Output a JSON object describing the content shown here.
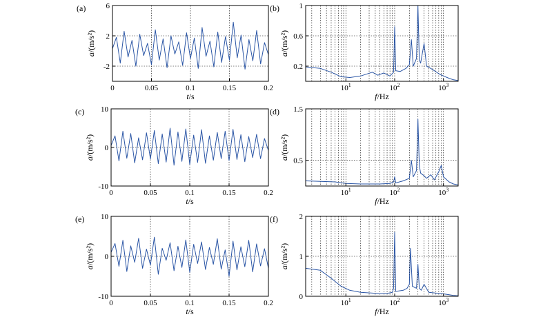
{
  "chart_data": [
    {
      "panel": "(a)",
      "type": "line",
      "ylabel": "a/(m/s²)",
      "xlabel": "t/s",
      "xlim": [
        0,
        0.2
      ],
      "ylim": [
        -4,
        6
      ],
      "x_ticks": [
        "0",
        "0.05",
        "0.1",
        "0.15",
        "0.2"
      ],
      "y_ticks": [
        "-2",
        "2",
        "6"
      ],
      "x_scale": "linear",
      "grid": true,
      "color": "#2a55a5",
      "series": [
        {
          "x": [
            0,
            0.005,
            0.01,
            0.015,
            0.02,
            0.025,
            0.03,
            0.035,
            0.04,
            0.045,
            0.05,
            0.055,
            0.06,
            0.065,
            0.07,
            0.075,
            0.08,
            0.085,
            0.09,
            0.095,
            0.1,
            0.105,
            0.11,
            0.115,
            0.12,
            0.125,
            0.13,
            0.135,
            0.14,
            0.145,
            0.15,
            0.155,
            0.16,
            0.165,
            0.17,
            0.175,
            0.18,
            0.185,
            0.19,
            0.195,
            0.2
          ],
          "y": [
            0.3,
            1.8,
            -1.6,
            2.6,
            -0.8,
            1.4,
            -2.0,
            2.2,
            -0.6,
            1.0,
            -1.8,
            2.8,
            -1.2,
            1.6,
            -2.2,
            2.0,
            -0.4,
            1.2,
            -1.9,
            2.4,
            -1.0,
            1.7,
            -2.3,
            3.1,
            -0.7,
            1.3,
            -2.1,
            2.5,
            -1.5,
            1.9,
            -1.2,
            3.8,
            -0.9,
            2.1,
            -2.4,
            1.5,
            -1.3,
            2.7,
            -1.7,
            1.1,
            -0.5
          ]
        }
      ]
    },
    {
      "panel": "(b)",
      "type": "line",
      "ylabel": "a/(m/s²)",
      "xlabel": "f/Hz",
      "xlim": [
        1.5,
        2000
      ],
      "ylim": [
        0,
        1
      ],
      "x_ticks": [
        "10¹",
        "10²",
        "10³"
      ],
      "y_ticks": [
        "0.2",
        "0.6",
        "1"
      ],
      "x_scale": "log",
      "grid": true,
      "color": "#2a55a5",
      "series": [
        {
          "x": [
            1.5,
            3,
            5,
            8,
            12,
            20,
            35,
            45,
            60,
            80,
            95,
            100,
            105,
            130,
            170,
            200,
            220,
            240,
            280,
            300,
            320,
            340,
            400,
            450,
            550,
            650,
            800,
            1000,
            1300,
            1600,
            2000
          ],
          "y": [
            0.19,
            0.17,
            0.12,
            0.06,
            0.05,
            0.07,
            0.12,
            0.08,
            0.11,
            0.07,
            0.12,
            0.72,
            0.14,
            0.13,
            0.17,
            0.22,
            0.55,
            0.2,
            0.3,
            1.0,
            0.28,
            0.24,
            0.5,
            0.2,
            0.17,
            0.14,
            0.1,
            0.07,
            0.04,
            0.02,
            0.01
          ]
        }
      ]
    },
    {
      "panel": "(c)",
      "type": "line",
      "ylabel": "a/(m/s²)",
      "xlabel": "t/s",
      "xlim": [
        0,
        0.2
      ],
      "ylim": [
        -10,
        10
      ],
      "x_ticks": [
        "0",
        "0.05",
        "0.1",
        "0.15",
        "0.2"
      ],
      "y_ticks": [
        "-10",
        "0",
        "10"
      ],
      "x_scale": "linear",
      "grid": true,
      "color": "#2a55a5",
      "series": [
        {
          "x": [
            0,
            0.005,
            0.01,
            0.015,
            0.02,
            0.025,
            0.03,
            0.035,
            0.04,
            0.045,
            0.05,
            0.055,
            0.06,
            0.065,
            0.07,
            0.075,
            0.08,
            0.085,
            0.09,
            0.095,
            0.1,
            0.105,
            0.11,
            0.115,
            0.12,
            0.125,
            0.13,
            0.135,
            0.14,
            0.145,
            0.15,
            0.155,
            0.16,
            0.165,
            0.17,
            0.175,
            0.18,
            0.185,
            0.19,
            0.195,
            0.2
          ],
          "y": [
            0.5,
            3.0,
            -3.5,
            4.2,
            -2.8,
            3.6,
            -4.0,
            2.5,
            -3.2,
            3.8,
            -3.0,
            4.4,
            -4.2,
            3.5,
            -3.8,
            5.0,
            -4.6,
            4.0,
            -3.6,
            4.8,
            -4.4,
            3.2,
            -3.9,
            4.6,
            -4.1,
            3.0,
            -3.3,
            3.9,
            -2.9,
            4.2,
            -3.4,
            4.7,
            -3.1,
            3.3,
            -3.7,
            2.8,
            -2.6,
            3.4,
            -2.9,
            2.3,
            -0.8
          ]
        }
      ]
    },
    {
      "panel": "(d)",
      "type": "line",
      "ylabel": "a/(m/s²)",
      "xlabel": "f/Hz",
      "xlim": [
        1.5,
        2000
      ],
      "ylim": [
        0,
        1.5
      ],
      "x_ticks": [
        "10¹",
        "10²",
        "10³"
      ],
      "y_ticks": [
        "0.5",
        "1.5"
      ],
      "x_scale": "log",
      "grid": true,
      "color": "#2a55a5",
      "series": [
        {
          "x": [
            1.5,
            3,
            6,
            10,
            20,
            50,
            80,
            95,
            100,
            105,
            150,
            200,
            220,
            240,
            280,
            300,
            320,
            340,
            400,
            450,
            550,
            650,
            800,
            900,
            1000,
            1300,
            1600,
            2000
          ],
          "y": [
            0.1,
            0.09,
            0.08,
            0.05,
            0.04,
            0.04,
            0.05,
            0.08,
            0.18,
            0.06,
            0.1,
            0.15,
            0.5,
            0.18,
            0.3,
            1.3,
            0.4,
            0.25,
            0.2,
            0.15,
            0.22,
            0.12,
            0.28,
            0.4,
            0.18,
            0.08,
            0.04,
            0.02
          ]
        }
      ]
    },
    {
      "panel": "(e)",
      "type": "line",
      "ylabel": "a/(m/s²)",
      "xlabel": "t/s",
      "xlim": [
        0,
        0.2
      ],
      "ylim": [
        -10,
        10
      ],
      "x_ticks": [
        "0",
        "0.05",
        "0.1",
        "0.15",
        "0.2"
      ],
      "y_ticks": [
        "-10",
        "0",
        "10"
      ],
      "x_scale": "linear",
      "grid": true,
      "color": "#2a55a5",
      "series": [
        {
          "x": [
            0,
            0.005,
            0.01,
            0.015,
            0.02,
            0.025,
            0.03,
            0.035,
            0.04,
            0.045,
            0.05,
            0.055,
            0.06,
            0.065,
            0.07,
            0.075,
            0.08,
            0.085,
            0.09,
            0.095,
            0.1,
            0.105,
            0.11,
            0.115,
            0.12,
            0.125,
            0.13,
            0.135,
            0.14,
            0.145,
            0.15,
            0.155,
            0.16,
            0.165,
            0.17,
            0.175,
            0.18,
            0.185,
            0.19,
            0.195,
            0.2
          ],
          "y": [
            1.0,
            3.2,
            -2.5,
            4.0,
            -3.8,
            2.6,
            -1.5,
            4.5,
            -3.0,
            1.8,
            -2.2,
            4.8,
            -4.5,
            2.0,
            -1.0,
            3.4,
            -3.6,
            2.5,
            -2.8,
            4.1,
            -4.0,
            3.0,
            -1.8,
            3.6,
            -3.3,
            2.2,
            -2.0,
            4.4,
            -3.2,
            1.6,
            -5.0,
            3.8,
            -3.4,
            2.4,
            -2.6,
            4.0,
            -3.9,
            3.1,
            -2.4,
            1.9,
            -3.0
          ]
        }
      ]
    },
    {
      "panel": "(f)",
      "type": "line",
      "ylabel": "a/(m/s²)",
      "xlabel": "f/Hz",
      "xlim": [
        1.5,
        2000
      ],
      "ylim": [
        0,
        2
      ],
      "x_ticks": [
        "10¹",
        "10²",
        "10³"
      ],
      "y_ticks": [
        "0",
        "1",
        "2"
      ],
      "x_scale": "log",
      "grid": true,
      "color": "#2a55a5",
      "series": [
        {
          "x": [
            1.5,
            3,
            5,
            8,
            12,
            20,
            35,
            50,
            70,
            90,
            95,
            100,
            105,
            150,
            180,
            200,
            210,
            230,
            280,
            300,
            320,
            350,
            400,
            500,
            700,
            1000,
            1300,
            1600,
            2000
          ],
          "y": [
            0.7,
            0.65,
            0.45,
            0.25,
            0.15,
            0.1,
            0.08,
            0.06,
            0.07,
            0.1,
            0.2,
            1.6,
            0.12,
            0.15,
            0.2,
            0.3,
            1.2,
            0.25,
            0.2,
            0.8,
            0.2,
            0.15,
            0.3,
            0.1,
            0.08,
            0.06,
            0.04,
            0.02,
            0.01
          ]
        }
      ]
    }
  ]
}
